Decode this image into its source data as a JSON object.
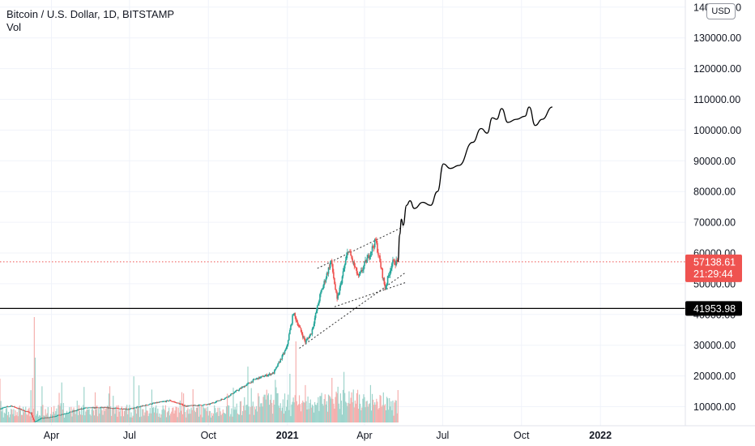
{
  "header": {
    "title": "Bitcoin / U.S. Dollar, 1D, BITSTAMP",
    "volume_label": "Vol"
  },
  "currency_button": "USD",
  "colors": {
    "up": "#26a69a",
    "down": "#ef5350",
    "vol_up": "#9fd4cc",
    "vol_down": "#f5b0ae",
    "price_line": "#ef5350",
    "support_line": "#000000",
    "projection": "#000000",
    "trendline": "#333333"
  },
  "chart_data": {
    "type": "candlestick",
    "symbol": "Bitcoin / U.S. Dollar",
    "interval": "1D",
    "exchange": "BITSTAMP",
    "y_axis": {
      "ticks": [
        10000,
        20000,
        30000,
        40000,
        50000,
        60000,
        70000,
        80000,
        90000,
        100000,
        110000,
        120000,
        130000,
        140000
      ],
      "tick_labels": [
        "10000.00",
        "20000.00",
        "30000.00",
        "40000.00",
        "50000.00",
        "60000.00",
        "70000.00",
        "80000.00",
        "90000.00",
        "100000.00",
        "110000.00",
        "120000.00",
        "130000.00",
        "140000.00"
      ],
      "range": [
        5000,
        142000
      ]
    },
    "x_axis": {
      "range": [
        "2020-02-01",
        "2022-04-10"
      ],
      "ticks": [
        {
          "date": "2020-04-01",
          "label": "Apr",
          "bold": false
        },
        {
          "date": "2020-07-01",
          "label": "Jul",
          "bold": false
        },
        {
          "date": "2020-10-01",
          "label": "Oct",
          "bold": false
        },
        {
          "date": "2021-01-01",
          "label": "2021",
          "bold": true
        },
        {
          "date": "2021-04-01",
          "label": "Apr",
          "bold": false
        },
        {
          "date": "2021-07-01",
          "label": "Jul",
          "bold": false
        },
        {
          "date": "2021-10-01",
          "label": "Oct",
          "bold": false
        },
        {
          "date": "2022-01-01",
          "label": "2022",
          "bold": true
        }
      ]
    },
    "price_path": [
      [
        "2020-02-01",
        9350
      ],
      [
        "2020-02-14",
        10300
      ],
      [
        "2020-03-01",
        8600
      ],
      [
        "2020-03-08",
        8000
      ],
      [
        "2020-03-12",
        5000
      ],
      [
        "2020-03-20",
        6200
      ],
      [
        "2020-04-01",
        6600
      ],
      [
        "2020-04-29",
        8700
      ],
      [
        "2020-05-10",
        9600
      ],
      [
        "2020-06-01",
        9700
      ],
      [
        "2020-07-01",
        9200
      ],
      [
        "2020-07-27",
        11000
      ],
      [
        "2020-08-17",
        12000
      ],
      [
        "2020-09-05",
        10200
      ],
      [
        "2020-10-01",
        10700
      ],
      [
        "2020-10-21",
        12900
      ],
      [
        "2020-11-05",
        15500
      ],
      [
        "2020-11-25",
        19000
      ],
      [
        "2020-12-16",
        21000
      ],
      [
        "2020-12-31",
        29000
      ],
      [
        "2021-01-08",
        40500
      ],
      [
        "2021-01-22",
        31000
      ],
      [
        "2021-01-29",
        34000
      ],
      [
        "2021-02-08",
        46000
      ],
      [
        "2021-02-21",
        57500
      ],
      [
        "2021-02-28",
        44500
      ],
      [
        "2021-03-13",
        61200
      ],
      [
        "2021-03-25",
        52000
      ],
      [
        "2021-04-14",
        64000
      ],
      [
        "2021-04-25",
        48500
      ],
      [
        "2021-05-03",
        56800
      ],
      [
        "2021-05-10",
        57138.61
      ]
    ],
    "current_price": 57138.61,
    "current_price_label": "57138.61",
    "countdown_label": "21:29:44",
    "support_level": 41953.98,
    "support_label": "41953.98",
    "projection_path": [
      [
        "2021-05-10",
        57138.61
      ],
      [
        "2021-05-12",
        66000
      ],
      [
        "2021-05-14",
        71000
      ],
      [
        "2021-05-16",
        69000
      ],
      [
        "2021-05-20",
        75500
      ],
      [
        "2021-05-24",
        77000
      ],
      [
        "2021-05-29",
        74500
      ],
      [
        "2021-06-08",
        76500
      ],
      [
        "2021-06-17",
        75500
      ],
      [
        "2021-06-25",
        80000
      ],
      [
        "2021-07-02",
        89000
      ],
      [
        "2021-07-10",
        87500
      ],
      [
        "2021-07-20",
        88500
      ],
      [
        "2021-08-05",
        96000
      ],
      [
        "2021-08-15",
        100500
      ],
      [
        "2021-08-22",
        99000
      ],
      [
        "2021-08-28",
        104000
      ],
      [
        "2021-09-02",
        103500
      ],
      [
        "2021-09-08",
        107000
      ],
      [
        "2021-09-15",
        102500
      ],
      [
        "2021-09-25",
        103500
      ],
      [
        "2021-10-05",
        104500
      ],
      [
        "2021-10-10",
        107500
      ],
      [
        "2021-10-17",
        101500
      ],
      [
        "2021-10-25",
        103500
      ],
      [
        "2021-11-06",
        107500
      ]
    ],
    "trendlines": [
      {
        "from": [
          "2021-02-05",
          55000
        ],
        "to": [
          "2021-05-16",
          68500
        ]
      },
      {
        "from": [
          "2021-02-25",
          42500
        ],
        "to": [
          "2021-05-20",
          50500
        ]
      },
      {
        "from": [
          "2021-01-15",
          29000
        ],
        "to": [
          "2021-05-18",
          53500
        ]
      }
    ]
  }
}
